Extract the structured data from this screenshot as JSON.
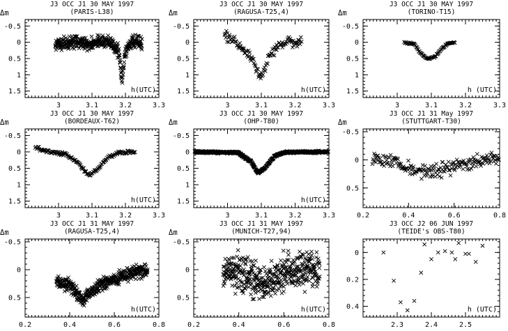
{
  "chart_data": [
    {
      "type": "scatter",
      "title": "J3 OCC J1 30 MAY 1997",
      "subtitle": "(PARIS-L38)",
      "xlabel": "h(UTC)",
      "ylabel": "Δm",
      "xlim": [
        2.9,
        3.3
      ],
      "ylim": [
        1.7,
        -0.7
      ],
      "xticks": [
        3,
        3.1,
        3.2,
        3.3
      ],
      "xtick_labels": [
        "3",
        "3.1",
        "3.2",
        "3.3"
      ],
      "yticks": [
        -0.5,
        0,
        0.5,
        1,
        1.5
      ],
      "ytick_labels": [
        "-0.5",
        "0",
        "0.5",
        "1",
        "1.5"
      ],
      "x_start": 2.99,
      "x_end": 3.25,
      "marker": "x",
      "dense": true,
      "profile": [
        [
          2.99,
          0.05
        ],
        [
          3.05,
          0.0
        ],
        [
          3.1,
          0.05
        ],
        [
          3.15,
          -0.05
        ],
        [
          3.18,
          0.3
        ],
        [
          3.19,
          1.2
        ],
        [
          3.2,
          0.3
        ],
        [
          3.22,
          -0.05
        ],
        [
          3.25,
          0.05
        ]
      ],
      "scatter": 0.28
    },
    {
      "type": "scatter",
      "title": "J3 OCC J1 30 MAY 1997",
      "subtitle": "(RAGUSA-T25,4)",
      "xlabel": "h(UTC)",
      "ylabel": "Δm",
      "xlim": [
        2.9,
        3.3
      ],
      "ylim": [
        1.7,
        -0.7
      ],
      "xticks": [
        3,
        3.1,
        3.2,
        3.3
      ],
      "xtick_labels": [
        "3",
        "3.1",
        "3.2",
        "3.3"
      ],
      "yticks": [
        -0.5,
        0,
        0.5,
        1,
        1.5
      ],
      "ytick_labels": [
        "-0.5",
        "0",
        "0.5",
        "1",
        "1.5"
      ],
      "x_start": 2.99,
      "x_end": 3.22,
      "marker": "x",
      "dense": false,
      "profile": [
        [
          2.99,
          -0.25
        ],
        [
          3.03,
          0.05
        ],
        [
          3.07,
          0.5
        ],
        [
          3.1,
          1.05
        ],
        [
          3.12,
          0.5
        ],
        [
          3.15,
          0.1
        ],
        [
          3.18,
          0.0
        ],
        [
          3.22,
          0.0
        ]
      ],
      "scatter": 0.22
    },
    {
      "type": "scatter",
      "title": "J3 OCC J1 30 MAY 1997",
      "subtitle": "(TORINO-T15)",
      "xlabel": "h (UTC)",
      "ylabel": "Δm",
      "xlim": [
        2.9,
        3.3
      ],
      "ylim": [
        1.7,
        -0.7
      ],
      "xticks": [
        3,
        3.1,
        3.2,
        3.3
      ],
      "xtick_labels": [
        "3",
        "3.1",
        "3.2",
        "3.3"
      ],
      "yticks": [
        -0.5,
        0,
        0.5,
        1,
        1.5
      ],
      "ytick_labels": [
        "-0.5",
        "0",
        "0.5",
        "1",
        "1.5"
      ],
      "x_start": 3.02,
      "x_end": 3.17,
      "marker": "x",
      "dense": false,
      "profile": [
        [
          3.02,
          0.0
        ],
        [
          3.05,
          0.05
        ],
        [
          3.07,
          0.35
        ],
        [
          3.09,
          0.52
        ],
        [
          3.11,
          0.45
        ],
        [
          3.13,
          0.2
        ],
        [
          3.15,
          0.02
        ],
        [
          3.17,
          0.0
        ]
      ],
      "scatter": 0.04
    },
    {
      "type": "scatter",
      "title": "J3 OCC J1 30 MAY 1997",
      "subtitle": "(BORDEAUX-T62)",
      "xlabel": "h(UTC)",
      "ylabel": "Δm",
      "xlim": [
        2.9,
        3.3
      ],
      "ylim": [
        1.7,
        -0.7
      ],
      "xticks": [
        3,
        3.1,
        3.2,
        3.3
      ],
      "xtick_labels": [
        "3",
        "3.1",
        "3.2",
        "3.3"
      ],
      "yticks": [
        -0.5,
        0,
        0.5,
        1,
        1.5
      ],
      "ytick_labels": [
        "-0.5",
        "0",
        "0.5",
        "1",
        "1.5"
      ],
      "x_start": 2.93,
      "x_end": 3.23,
      "marker": "x",
      "dense": false,
      "profile": [
        [
          2.93,
          -0.15
        ],
        [
          2.97,
          0.0
        ],
        [
          3.02,
          0.05
        ],
        [
          3.06,
          0.35
        ],
        [
          3.09,
          0.7
        ],
        [
          3.12,
          0.5
        ],
        [
          3.15,
          0.15
        ],
        [
          3.18,
          0.02
        ],
        [
          3.23,
          0.0
        ]
      ],
      "scatter": 0.08
    },
    {
      "type": "scatter",
      "title": "J3 OCC J1 30 MAY 1997",
      "subtitle": "(OHP-T80)",
      "xlabel": "h(UTC)",
      "ylabel": "Δm",
      "xlim": [
        2.9,
        3.3
      ],
      "ylim": [
        1.7,
        -0.7
      ],
      "xticks": [
        3,
        3.1,
        3.2,
        3.3
      ],
      "xtick_labels": [
        "3",
        "3.1",
        "3.2",
        "3.3"
      ],
      "yticks": [
        -0.5,
        0,
        0.5,
        1,
        1.5
      ],
      "ytick_labels": [
        "-0.5",
        "0",
        "0.5",
        "1",
        "1.5"
      ],
      "x_start": 2.9,
      "x_end": 3.3,
      "marker": "x",
      "dense": true,
      "profile": [
        [
          2.9,
          0.0
        ],
        [
          3.03,
          0.02
        ],
        [
          3.07,
          0.3
        ],
        [
          3.09,
          0.65
        ],
        [
          3.11,
          0.5
        ],
        [
          3.14,
          0.12
        ],
        [
          3.17,
          0.01
        ],
        [
          3.3,
          0.0
        ]
      ],
      "scatter": 0.05
    },
    {
      "type": "scatter",
      "title": "J3 OCC J1 31 May 1997",
      "subtitle": "(STUTTGART-T30)",
      "xlabel": "",
      "ylabel": "Δm",
      "xlim": [
        0.2,
        0.8
      ],
      "ylim": [
        0.85,
        -0.55
      ],
      "xticks": [
        0.2,
        0.4,
        0.6,
        0.8
      ],
      "xtick_labels": [
        "0.2",
        "0.4",
        "0.6",
        "0.8"
      ],
      "yticks": [
        -0.5,
        0,
        0.5
      ],
      "ytick_labels": [
        "-0.5",
        "0",
        "0.5"
      ],
      "x_start": 0.24,
      "x_end": 0.8,
      "marker": "x",
      "dense": false,
      "profile": [
        [
          0.24,
          0.0
        ],
        [
          0.33,
          0.02
        ],
        [
          0.4,
          0.15
        ],
        [
          0.5,
          0.22
        ],
        [
          0.6,
          0.12
        ],
        [
          0.7,
          0.0
        ],
        [
          0.8,
          0.0
        ]
      ],
      "scatter": 0.18
    },
    {
      "type": "scatter",
      "title": "J3 OCC J1 31 MAY 1997",
      "subtitle": "(RAGUSA-T25,4)",
      "xlabel": "h(UTC)",
      "ylabel": "Δm",
      "xlim": [
        0.2,
        0.8
      ],
      "ylim": [
        0.85,
        -0.55
      ],
      "xticks": [
        0.2,
        0.4,
        0.6,
        0.8
      ],
      "xtick_labels": [
        "0.2",
        "0.4",
        "0.6",
        "0.8"
      ],
      "yticks": [
        -0.5,
        0,
        0.5
      ],
      "ytick_labels": [
        "-0.5",
        "0",
        "0.5"
      ],
      "x_start": 0.34,
      "x_end": 0.75,
      "marker": "x",
      "dense": true,
      "profile": [
        [
          0.34,
          0.2
        ],
        [
          0.4,
          0.3
        ],
        [
          0.44,
          0.45
        ],
        [
          0.46,
          0.6
        ],
        [
          0.48,
          0.45
        ],
        [
          0.55,
          0.25
        ],
        [
          0.65,
          0.08
        ],
        [
          0.75,
          0.0
        ]
      ],
      "scatter": 0.17
    },
    {
      "type": "scatter",
      "title": "J3 OCC J1 31 MAY 1997",
      "subtitle": "(MUNICH-T27,94)",
      "xlabel": "h(UTC)",
      "ylabel": "Δm",
      "xlim": [
        0.2,
        0.8
      ],
      "ylim": [
        0.85,
        -0.55
      ],
      "xticks": [
        0.2,
        0.4,
        0.6,
        0.8
      ],
      "xtick_labels": [
        "0.2",
        "0.4",
        "0.6",
        "0.8"
      ],
      "yticks": [
        -0.5,
        0,
        0.5
      ],
      "ytick_labels": [
        "-0.5",
        "0",
        "0.5"
      ],
      "x_start": 0.33,
      "x_end": 0.76,
      "marker": "x",
      "dense": true,
      "profile": [
        [
          0.33,
          0.0
        ],
        [
          0.4,
          0.05
        ],
        [
          0.48,
          0.2
        ],
        [
          0.52,
          0.25
        ],
        [
          0.58,
          0.12
        ],
        [
          0.65,
          0.0
        ],
        [
          0.76,
          -0.02
        ]
      ],
      "scatter": 0.5
    },
    {
      "type": "scatter",
      "title": "J3 OCC J2 06 JUN 1997",
      "subtitle": "(TEIDE's OBS-T80)",
      "xlabel": "h (UTC)",
      "ylabel": "",
      "xlim": [
        2.2,
        2.6
      ],
      "ylim": [
        0.48,
        -0.1
      ],
      "xticks": [
        2.3,
        2.4,
        2.5
      ],
      "xtick_labels": [
        "2.3",
        "2.4",
        "2.5"
      ],
      "yticks": [
        0,
        0.2,
        0.4
      ],
      "ytick_labels": [
        "0",
        "0.2",
        "0.4"
      ],
      "x": [
        2.26,
        2.29,
        2.31,
        2.33,
        2.35,
        2.37,
        2.38,
        2.4,
        2.42,
        2.44,
        2.46,
        2.47,
        2.48,
        2.5,
        2.51,
        2.53,
        2.55
      ],
      "y": [
        0.0,
        0.21,
        0.37,
        0.43,
        0.36,
        0.15,
        -0.06,
        0.05,
        0.0,
        -0.01,
        0.0,
        0.05,
        -0.07,
        0.01,
        0.01,
        0.07,
        -0.05
      ]
    }
  ]
}
